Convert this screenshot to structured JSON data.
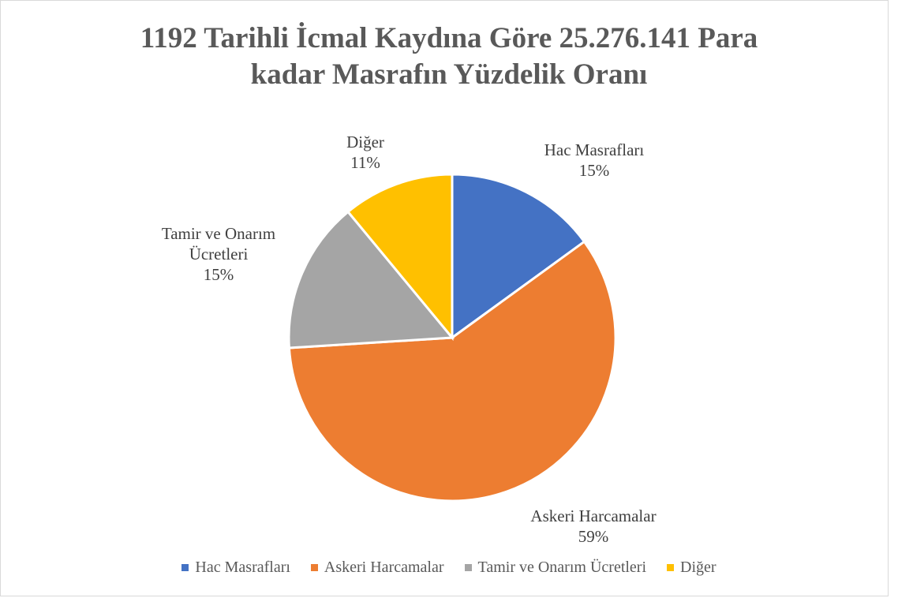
{
  "chart_data": {
    "type": "pie",
    "title": "1192 Tarihli İcmal Kaydına Göre 25.276.141 Para kadar Masrafın Yüzdelik Oranı",
    "categories": [
      "Hac Masrafları",
      "Askeri Harcamalar",
      "Tamir ve Onarım Ücretleri",
      "Diğer"
    ],
    "values": [
      15,
      59,
      15,
      11
    ],
    "value_labels": [
      "15%",
      "59%",
      "15%",
      "11%"
    ],
    "colors": [
      "#4472c4",
      "#ed7d31",
      "#a5a5a5",
      "#ffc000"
    ],
    "legend": "bottom"
  }
}
